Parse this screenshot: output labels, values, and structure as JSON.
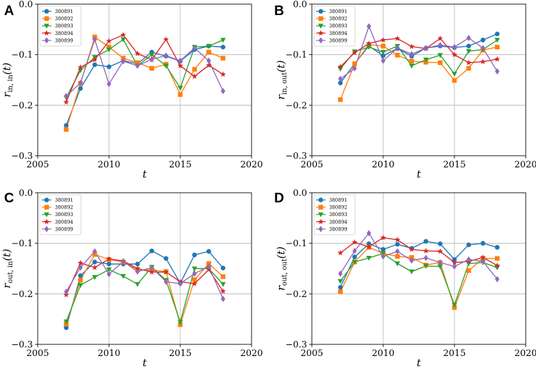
{
  "figure_label": "Four panels of r(t) over years for 5 series",
  "chart_data": [
    {
      "panel": "A",
      "type": "line",
      "title": "",
      "xlabel": "t",
      "ylabel_main": "r",
      "ylabel_sub": "in, in",
      "ylabel_arg": "(t)",
      "xlim": [
        2005,
        2020
      ],
      "ylim": [
        -0.3,
        0.0
      ],
      "xticks": [
        "2005",
        "2010",
        "2015",
        "2020"
      ],
      "xtick_values": [
        2005,
        2010,
        2015,
        2020
      ],
      "yticks": [
        "−0.3",
        "−0.2",
        "−0.1",
        "0.0"
      ],
      "ytick_values": [
        -0.3,
        -0.2,
        -0.1,
        0.0
      ],
      "grid": true,
      "legend_position": "top-left",
      "x": [
        2007,
        2008,
        2009,
        2010,
        2011,
        2012,
        2013,
        2014,
        2015,
        2016,
        2017,
        2018
      ],
      "series": [
        {
          "name": "380891",
          "color": "#1f77b4",
          "marker": "circle",
          "values": [
            -0.24,
            -0.167,
            -0.12,
            -0.124,
            -0.112,
            -0.118,
            -0.095,
            -0.103,
            -0.113,
            -0.09,
            -0.083,
            -0.085
          ]
        },
        {
          "name": "380892",
          "color": "#ff7f0e",
          "marker": "square",
          "values": [
            -0.248,
            -0.157,
            -0.065,
            -0.085,
            -0.107,
            -0.116,
            -0.127,
            -0.119,
            -0.179,
            -0.129,
            -0.095,
            -0.107
          ]
        },
        {
          "name": "380893",
          "color": "#2ca02c",
          "marker": "triangle-down",
          "values": [
            -0.185,
            -0.131,
            -0.105,
            -0.09,
            -0.07,
            -0.122,
            -0.1,
            -0.122,
            -0.166,
            -0.085,
            -0.083,
            -0.071
          ]
        },
        {
          "name": "380894",
          "color": "#d62728",
          "marker": "star",
          "values": [
            -0.194,
            -0.125,
            -0.11,
            -0.073,
            -0.061,
            -0.098,
            -0.11,
            -0.07,
            -0.122,
            -0.143,
            -0.121,
            -0.139
          ]
        },
        {
          "name": "380899",
          "color": "#9467bd",
          "marker": "diamond",
          "values": [
            -0.182,
            -0.156,
            -0.07,
            -0.158,
            -0.113,
            -0.122,
            -0.109,
            -0.102,
            -0.112,
            -0.087,
            -0.112,
            -0.172
          ]
        }
      ]
    },
    {
      "panel": "B",
      "type": "line",
      "title": "",
      "xlabel": "t",
      "ylabel_main": "r",
      "ylabel_sub": "in, out",
      "ylabel_arg": "(t)",
      "xlim": [
        2005,
        2020
      ],
      "ylim": [
        -0.3,
        0.0
      ],
      "xticks": [
        "2005",
        "2010",
        "2015",
        "2020"
      ],
      "xtick_values": [
        2005,
        2010,
        2015,
        2020
      ],
      "yticks": [
        "−0.3",
        "−0.2",
        "−0.1",
        "0.0"
      ],
      "ytick_values": [
        -0.3,
        -0.2,
        -0.1,
        0.0
      ],
      "grid": true,
      "legend_position": "top-left",
      "x": [
        2007,
        2008,
        2009,
        2010,
        2011,
        2012,
        2013,
        2014,
        2015,
        2016,
        2017,
        2018
      ],
      "series": [
        {
          "name": "380891",
          "color": "#1f77b4",
          "marker": "circle",
          "values": [
            -0.156,
            -0.118,
            -0.083,
            -0.102,
            -0.088,
            -0.103,
            -0.087,
            -0.083,
            -0.086,
            -0.083,
            -0.071,
            -0.059
          ]
        },
        {
          "name": "380892",
          "color": "#ff7f0e",
          "marker": "square",
          "values": [
            -0.189,
            -0.118,
            -0.08,
            -0.083,
            -0.101,
            -0.113,
            -0.115,
            -0.116,
            -0.151,
            -0.127,
            -0.091,
            -0.085
          ]
        },
        {
          "name": "380893",
          "color": "#2ca02c",
          "marker": "triangle-down",
          "values": [
            -0.128,
            -0.094,
            -0.085,
            -0.095,
            -0.083,
            -0.122,
            -0.11,
            -0.101,
            -0.138,
            -0.093,
            -0.09,
            -0.071
          ]
        },
        {
          "name": "380894",
          "color": "#d62728",
          "marker": "star",
          "values": [
            -0.124,
            -0.096,
            -0.078,
            -0.071,
            -0.068,
            -0.084,
            -0.088,
            -0.068,
            -0.1,
            -0.116,
            -0.114,
            -0.109
          ]
        },
        {
          "name": "380899",
          "color": "#9467bd",
          "marker": "diamond",
          "values": [
            -0.148,
            -0.127,
            -0.044,
            -0.112,
            -0.087,
            -0.099,
            -0.087,
            -0.081,
            -0.085,
            -0.067,
            -0.087,
            -0.133
          ]
        }
      ]
    },
    {
      "panel": "C",
      "type": "line",
      "title": "",
      "xlabel": "t",
      "ylabel_main": "r",
      "ylabel_sub": "out, in",
      "ylabel_arg": "(t)",
      "xlim": [
        2005,
        2020
      ],
      "ylim": [
        -0.3,
        0.0
      ],
      "xticks": [
        "2005",
        "2010",
        "2015",
        "2020"
      ],
      "xtick_values": [
        2005,
        2010,
        2015,
        2020
      ],
      "yticks": [
        "−0.3",
        "−0.2",
        "−0.1",
        "0.0"
      ],
      "ytick_values": [
        -0.3,
        -0.2,
        -0.1,
        0.0
      ],
      "grid": true,
      "legend_position": "top-left",
      "x": [
        2007,
        2008,
        2009,
        2010,
        2011,
        2012,
        2013,
        2014,
        2015,
        2016,
        2017,
        2018
      ],
      "series": [
        {
          "name": "380891",
          "color": "#1f77b4",
          "marker": "circle",
          "values": [
            -0.267,
            -0.164,
            -0.137,
            -0.141,
            -0.141,
            -0.141,
            -0.115,
            -0.13,
            -0.179,
            -0.123,
            -0.116,
            -0.149
          ]
        },
        {
          "name": "380892",
          "color": "#ff7f0e",
          "marker": "square",
          "values": [
            -0.26,
            -0.173,
            -0.122,
            -0.132,
            -0.137,
            -0.152,
            -0.153,
            -0.156,
            -0.261,
            -0.172,
            -0.14,
            -0.166
          ]
        },
        {
          "name": "380893",
          "color": "#2ca02c",
          "marker": "triangle-down",
          "values": [
            -0.255,
            -0.183,
            -0.167,
            -0.152,
            -0.165,
            -0.181,
            -0.147,
            -0.173,
            -0.256,
            -0.15,
            -0.15,
            -0.181
          ]
        },
        {
          "name": "380894",
          "color": "#d62728",
          "marker": "star",
          "values": [
            -0.202,
            -0.139,
            -0.148,
            -0.131,
            -0.135,
            -0.15,
            -0.157,
            -0.157,
            -0.176,
            -0.18,
            -0.152,
            -0.195
          ]
        },
        {
          "name": "380899",
          "color": "#9467bd",
          "marker": "diamond",
          "values": [
            -0.196,
            -0.148,
            -0.116,
            -0.161,
            -0.136,
            -0.156,
            -0.148,
            -0.176,
            -0.18,
            -0.16,
            -0.146,
            -0.21
          ]
        }
      ]
    },
    {
      "panel": "D",
      "type": "line",
      "title": "",
      "xlabel": "t",
      "ylabel_main": "r",
      "ylabel_sub": "out, out",
      "ylabel_arg": "(t)",
      "xlim": [
        2005,
        2020
      ],
      "ylim": [
        -0.3,
        0.0
      ],
      "xticks": [
        "2005",
        "2010",
        "2015",
        "2020"
      ],
      "xtick_values": [
        2005,
        2010,
        2015,
        2020
      ],
      "yticks": [
        "−0.3",
        "−0.2",
        "−0.1",
        "0.0"
      ],
      "ytick_values": [
        -0.3,
        -0.2,
        -0.1,
        0.0
      ],
      "grid": true,
      "legend_position": "top-left",
      "x": [
        2007,
        2008,
        2009,
        2010,
        2011,
        2012,
        2013,
        2014,
        2015,
        2016,
        2017,
        2018
      ],
      "series": [
        {
          "name": "380891",
          "color": "#1f77b4",
          "marker": "circle",
          "values": [
            -0.187,
            -0.127,
            -0.101,
            -0.112,
            -0.102,
            -0.11,
            -0.096,
            -0.101,
            -0.132,
            -0.103,
            -0.1,
            -0.108
          ]
        },
        {
          "name": "380892",
          "color": "#ff7f0e",
          "marker": "square",
          "values": [
            -0.196,
            -0.137,
            -0.108,
            -0.12,
            -0.126,
            -0.128,
            -0.143,
            -0.138,
            -0.227,
            -0.154,
            -0.13,
            -0.13
          ]
        },
        {
          "name": "380893",
          "color": "#2ca02c",
          "marker": "triangle-down",
          "values": [
            -0.175,
            -0.137,
            -0.129,
            -0.12,
            -0.14,
            -0.156,
            -0.145,
            -0.146,
            -0.222,
            -0.14,
            -0.138,
            -0.148
          ]
        },
        {
          "name": "380894",
          "color": "#d62728",
          "marker": "star",
          "values": [
            -0.119,
            -0.098,
            -0.107,
            -0.089,
            -0.093,
            -0.112,
            -0.115,
            -0.116,
            -0.138,
            -0.136,
            -0.128,
            -0.144
          ]
        },
        {
          "name": "380899",
          "color": "#9467bd",
          "marker": "diamond",
          "values": [
            -0.16,
            -0.115,
            -0.08,
            -0.126,
            -0.116,
            -0.134,
            -0.129,
            -0.138,
            -0.146,
            -0.132,
            -0.136,
            -0.171
          ]
        }
      ]
    }
  ]
}
